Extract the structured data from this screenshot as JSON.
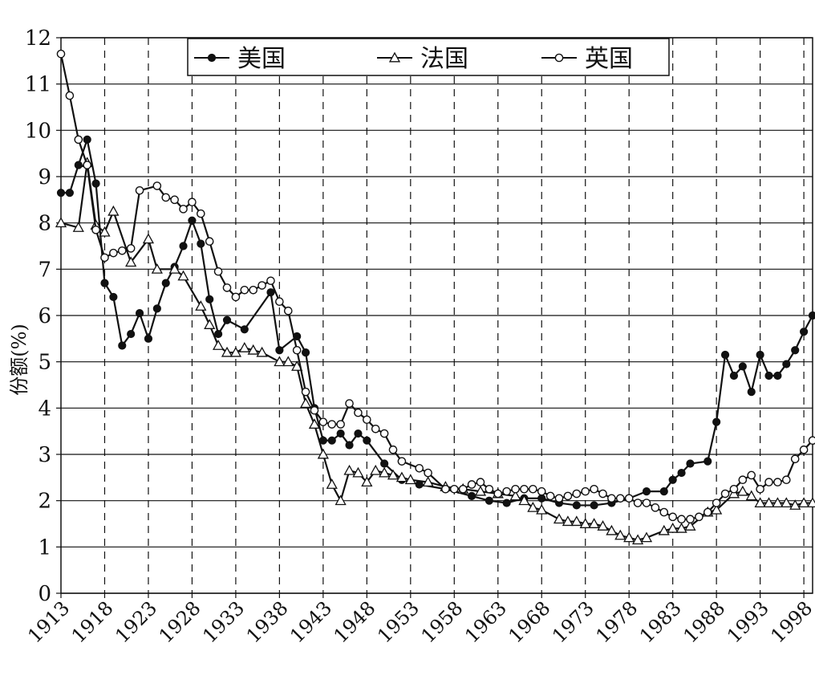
{
  "chart_data": {
    "type": "line",
    "title": "",
    "xlabel": "",
    "ylabel": "份额(%)",
    "xlim": [
      1913,
      1998
    ],
    "ylim": [
      0,
      12
    ],
    "y_ticks": [
      0,
      1,
      2,
      3,
      4,
      5,
      6,
      7,
      8,
      9,
      10,
      11,
      12
    ],
    "x_tick_labels": [
      "1913",
      "1918",
      "1923",
      "1928",
      "1933",
      "1938",
      "1943",
      "1948",
      "1953",
      "1958",
      "1963",
      "1968",
      "1973",
      "1978",
      "1983",
      "1988",
      "1993",
      "1998"
    ],
    "grid": {
      "horizontal": "solid",
      "vertical": "dashed"
    },
    "legend_position": "top",
    "series": [
      {
        "name": "美国",
        "marker": "filled-circle",
        "color": "#111111",
        "points": [
          [
            1913,
            8.65
          ],
          [
            1914,
            8.65
          ],
          [
            1915,
            9.25
          ],
          [
            1916,
            9.8
          ],
          [
            1917,
            8.85
          ],
          [
            1918,
            6.7
          ],
          [
            1919,
            6.4
          ],
          [
            1920,
            5.35
          ],
          [
            1921,
            5.6
          ],
          [
            1922,
            6.05
          ],
          [
            1923,
            5.5
          ],
          [
            1924,
            6.15
          ],
          [
            1925,
            6.7
          ],
          [
            1926,
            7.05
          ],
          [
            1927,
            7.5
          ],
          [
            1928,
            8.05
          ],
          [
            1929,
            7.55
          ],
          [
            1930,
            6.35
          ],
          [
            1931,
            5.6
          ],
          [
            1932,
            5.9
          ],
          [
            1934,
            5.7
          ],
          [
            1937,
            6.5
          ],
          [
            1938,
            5.25
          ],
          [
            1940,
            5.55
          ],
          [
            1941,
            5.2
          ],
          [
            1942,
            4.0
          ],
          [
            1943,
            3.3
          ],
          [
            1944,
            3.3
          ],
          [
            1945,
            3.45
          ],
          [
            1946,
            3.2
          ],
          [
            1947,
            3.45
          ],
          [
            1948,
            3.3
          ],
          [
            1950,
            2.8
          ],
          [
            1952,
            2.45
          ],
          [
            1954,
            2.35
          ],
          [
            1957,
            2.25
          ],
          [
            1960,
            2.1
          ],
          [
            1962,
            2.0
          ],
          [
            1964,
            1.95
          ],
          [
            1966,
            2.05
          ],
          [
            1968,
            2.05
          ],
          [
            1970,
            1.95
          ],
          [
            1972,
            1.9
          ],
          [
            1974,
            1.9
          ],
          [
            1976,
            1.95
          ],
          [
            1978,
            2.05
          ],
          [
            1980,
            2.2
          ],
          [
            1982,
            2.2
          ],
          [
            1983,
            2.45
          ],
          [
            1984,
            2.6
          ],
          [
            1985,
            2.8
          ],
          [
            1987,
            2.85
          ],
          [
            1988,
            3.7
          ],
          [
            1989,
            5.15
          ],
          [
            1990,
            4.7
          ],
          [
            1991,
            4.9
          ],
          [
            1992,
            4.35
          ],
          [
            1993,
            5.15
          ],
          [
            1994,
            4.7
          ],
          [
            1995,
            4.7
          ],
          [
            1996,
            4.95
          ],
          [
            1997,
            5.25
          ],
          [
            1998,
            5.65
          ],
          [
            1999,
            6.0
          ]
        ]
      },
      {
        "name": "法国",
        "marker": "open-triangle",
        "color": "#111111",
        "points": [
          [
            1913,
            8.0
          ],
          [
            1915,
            7.9
          ],
          [
            1916,
            9.3
          ],
          [
            1917,
            7.95
          ],
          [
            1918,
            7.8
          ],
          [
            1919,
            8.25
          ],
          [
            1921,
            7.15
          ],
          [
            1923,
            7.65
          ],
          [
            1924,
            7.0
          ],
          [
            1926,
            7.0
          ],
          [
            1927,
            6.85
          ],
          [
            1929,
            6.2
          ],
          [
            1930,
            5.8
          ],
          [
            1931,
            5.35
          ],
          [
            1932,
            5.2
          ],
          [
            1933,
            5.2
          ],
          [
            1934,
            5.3
          ],
          [
            1935,
            5.25
          ],
          [
            1936,
            5.2
          ],
          [
            1938,
            5.0
          ],
          [
            1939,
            5.0
          ],
          [
            1940,
            4.9
          ],
          [
            1941,
            4.1
          ],
          [
            1942,
            3.65
          ],
          [
            1943,
            3.0
          ],
          [
            1944,
            2.35
          ],
          [
            1945,
            2.0
          ],
          [
            1946,
            2.65
          ],
          [
            1947,
            2.6
          ],
          [
            1948,
            2.4
          ],
          [
            1949,
            2.65
          ],
          [
            1950,
            2.6
          ],
          [
            1951,
            2.55
          ],
          [
            1952,
            2.5
          ],
          [
            1953,
            2.45
          ],
          [
            1955,
            2.4
          ],
          [
            1957,
            2.3
          ],
          [
            1959,
            2.25
          ],
          [
            1961,
            2.2
          ],
          [
            1963,
            2.15
          ],
          [
            1965,
            2.1
          ],
          [
            1966,
            2.0
          ],
          [
            1967,
            1.85
          ],
          [
            1968,
            1.8
          ],
          [
            1970,
            1.6
          ],
          [
            1971,
            1.55
          ],
          [
            1972,
            1.55
          ],
          [
            1973,
            1.5
          ],
          [
            1974,
            1.5
          ],
          [
            1975,
            1.45
          ],
          [
            1976,
            1.35
          ],
          [
            1977,
            1.25
          ],
          [
            1978,
            1.2
          ],
          [
            1979,
            1.15
          ],
          [
            1980,
            1.2
          ],
          [
            1982,
            1.35
          ],
          [
            1983,
            1.4
          ],
          [
            1984,
            1.4
          ],
          [
            1985,
            1.45
          ],
          [
            1987,
            1.75
          ],
          [
            1988,
            1.8
          ],
          [
            1990,
            2.15
          ],
          [
            1991,
            2.2
          ],
          [
            1992,
            2.1
          ],
          [
            1993,
            1.95
          ],
          [
            1994,
            1.95
          ],
          [
            1995,
            1.95
          ],
          [
            1996,
            1.95
          ],
          [
            1997,
            1.9
          ],
          [
            1998,
            1.95
          ],
          [
            1999,
            1.95
          ]
        ]
      },
      {
        "name": "英国",
        "marker": "open-circle",
        "color": "#111111",
        "points": [
          [
            1913,
            11.65
          ],
          [
            1914,
            10.75
          ],
          [
            1915,
            9.8
          ],
          [
            1916,
            9.25
          ],
          [
            1917,
            7.85
          ],
          [
            1918,
            7.25
          ],
          [
            1919,
            7.35
          ],
          [
            1920,
            7.4
          ],
          [
            1921,
            7.45
          ],
          [
            1922,
            8.7
          ],
          [
            1924,
            8.8
          ],
          [
            1925,
            8.55
          ],
          [
            1926,
            8.5
          ],
          [
            1927,
            8.3
          ],
          [
            1928,
            8.45
          ],
          [
            1929,
            8.2
          ],
          [
            1930,
            7.6
          ],
          [
            1931,
            6.95
          ],
          [
            1932,
            6.6
          ],
          [
            1933,
            6.4
          ],
          [
            1934,
            6.55
          ],
          [
            1935,
            6.55
          ],
          [
            1936,
            6.65
          ],
          [
            1937,
            6.75
          ],
          [
            1938,
            6.3
          ],
          [
            1939,
            6.1
          ],
          [
            1940,
            5.25
          ],
          [
            1941,
            4.35
          ],
          [
            1942,
            3.95
          ],
          [
            1943,
            3.7
          ],
          [
            1944,
            3.65
          ],
          [
            1945,
            3.65
          ],
          [
            1946,
            4.1
          ],
          [
            1947,
            3.9
          ],
          [
            1948,
            3.75
          ],
          [
            1949,
            3.55
          ],
          [
            1950,
            3.45
          ],
          [
            1951,
            3.1
          ],
          [
            1952,
            2.85
          ],
          [
            1954,
            2.7
          ],
          [
            1955,
            2.6
          ],
          [
            1957,
            2.25
          ],
          [
            1958,
            2.25
          ],
          [
            1959,
            2.25
          ],
          [
            1960,
            2.35
          ],
          [
            1961,
            2.4
          ],
          [
            1962,
            2.25
          ],
          [
            1963,
            2.15
          ],
          [
            1964,
            2.2
          ],
          [
            1965,
            2.25
          ],
          [
            1966,
            2.25
          ],
          [
            1967,
            2.25
          ],
          [
            1968,
            2.2
          ],
          [
            1969,
            2.1
          ],
          [
            1970,
            2.05
          ],
          [
            1971,
            2.1
          ],
          [
            1972,
            2.15
          ],
          [
            1973,
            2.2
          ],
          [
            1974,
            2.25
          ],
          [
            1975,
            2.15
          ],
          [
            1976,
            2.05
          ],
          [
            1977,
            2.05
          ],
          [
            1978,
            2.05
          ],
          [
            1979,
            1.95
          ],
          [
            1980,
            1.95
          ],
          [
            1981,
            1.85
          ],
          [
            1982,
            1.75
          ],
          [
            1983,
            1.65
          ],
          [
            1984,
            1.6
          ],
          [
            1985,
            1.6
          ],
          [
            1986,
            1.65
          ],
          [
            1987,
            1.75
          ],
          [
            1988,
            1.95
          ],
          [
            1989,
            2.15
          ],
          [
            1990,
            2.25
          ],
          [
            1991,
            2.45
          ],
          [
            1992,
            2.55
          ],
          [
            1993,
            2.25
          ],
          [
            1994,
            2.4
          ],
          [
            1995,
            2.4
          ],
          [
            1996,
            2.45
          ],
          [
            1997,
            2.9
          ],
          [
            1998,
            3.1
          ],
          [
            1999,
            3.3
          ]
        ]
      }
    ]
  }
}
